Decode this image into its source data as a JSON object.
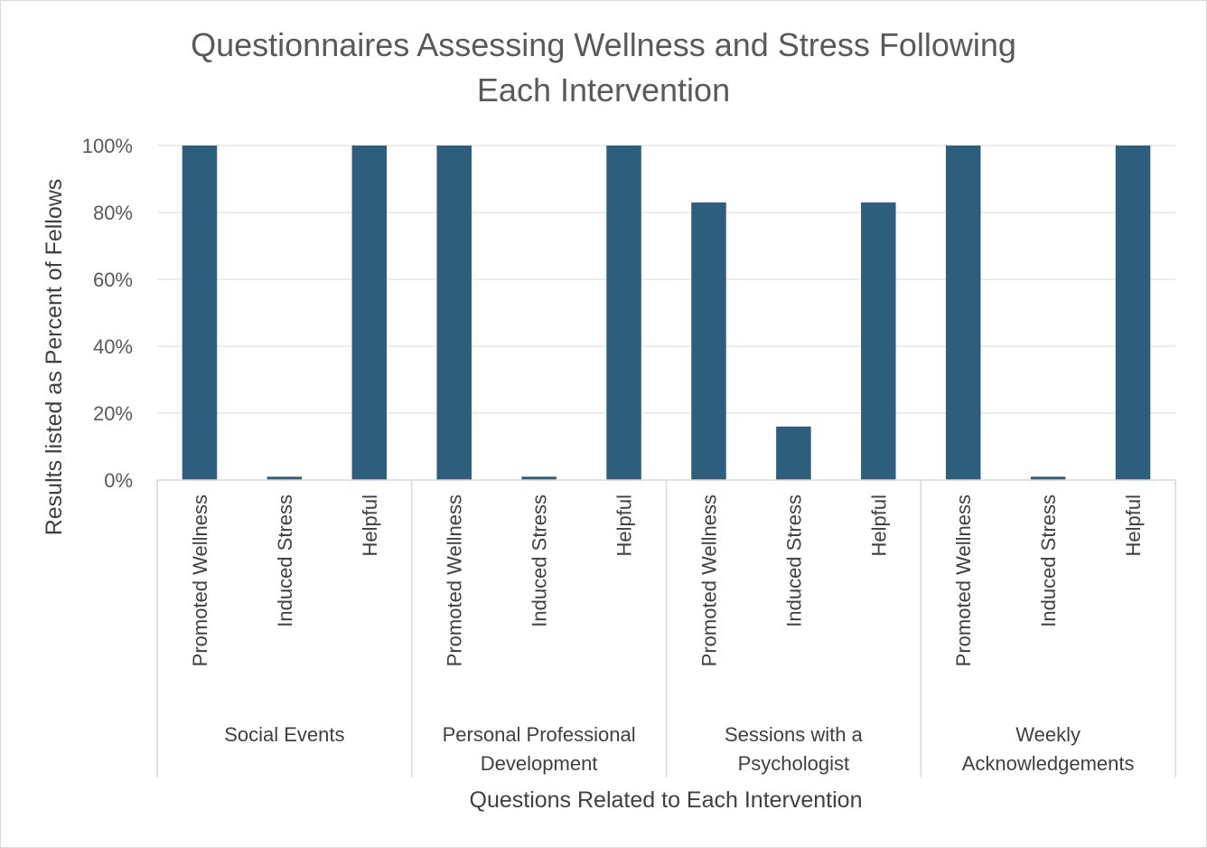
{
  "chart_data": {
    "type": "bar",
    "title_lines": [
      "Questionnaires Assessing Wellness and Stress Following",
      "Each Intervention"
    ],
    "xlabel": "Questions Related to Each Intervention",
    "ylabel": "Results listed as Percent of Fellows",
    "ylim": [
      0,
      100
    ],
    "y_ticks": [
      "0%",
      "20%",
      "40%",
      "60%",
      "80%",
      "100%"
    ],
    "grid": true,
    "bar_color": "#2e5e7e",
    "groups": [
      {
        "label_lines": [
          "Social Events"
        ],
        "categories": [
          "Promoted Wellness",
          "Induced Stress",
          "Helpful"
        ],
        "values": [
          100,
          1,
          100
        ]
      },
      {
        "label_lines": [
          "Personal Professional",
          "Development"
        ],
        "categories": [
          "Promoted Wellness",
          "Induced Stress",
          "Helpful"
        ],
        "values": [
          100,
          1,
          100
        ]
      },
      {
        "label_lines": [
          "Sessions with a",
          "Psychologist"
        ],
        "categories": [
          "Promoted Wellness",
          "Induced Stress",
          "Helpful"
        ],
        "values": [
          83,
          16,
          83
        ]
      },
      {
        "label_lines": [
          "Weekly",
          "Acknowledgements"
        ],
        "categories": [
          "Promoted Wellness",
          "Induced Stress",
          "Helpful"
        ],
        "values": [
          100,
          1,
          100
        ]
      }
    ]
  }
}
